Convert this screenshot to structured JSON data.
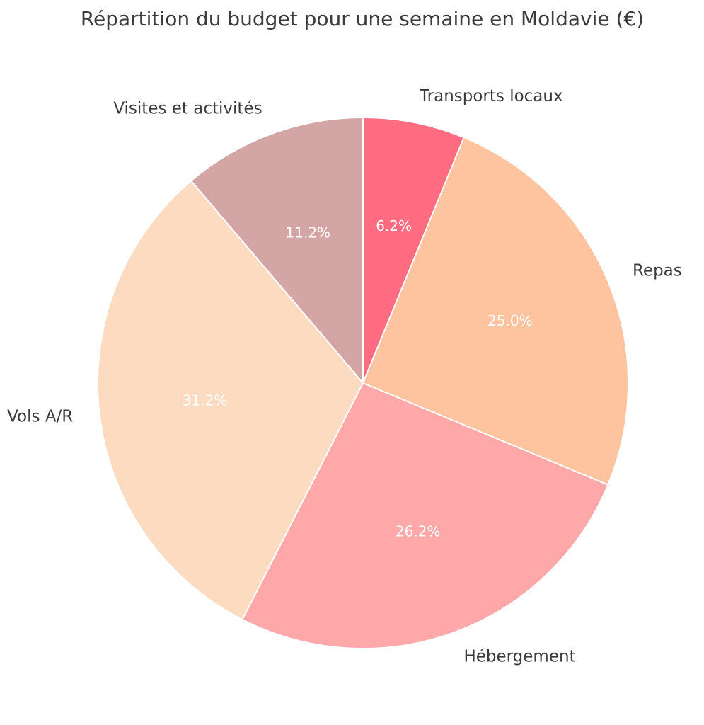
{
  "chart_data": {
    "type": "pie",
    "title": "Répartition du budget pour une semaine en Moldavie (€)",
    "start_angle_deg": 90,
    "direction": "clockwise",
    "slices": [
      {
        "label": "Transports locaux",
        "percent": 6.2,
        "pct_label": "6.2%",
        "color": "#ff6b81"
      },
      {
        "label": "Repas",
        "percent": 25.0,
        "pct_label": "25.0%",
        "color": "#fec39f"
      },
      {
        "label": "Hébergement",
        "percent": 26.2,
        "pct_label": "26.2%",
        "color": "#fea8aa"
      },
      {
        "label": "Vols A/R",
        "percent": 31.2,
        "pct_label": "31.2%",
        "color": "#fddbc0"
      },
      {
        "label": "Visites et activités",
        "percent": 11.2,
        "pct_label": "11.2%",
        "color": "#d3a5a5"
      }
    ]
  }
}
